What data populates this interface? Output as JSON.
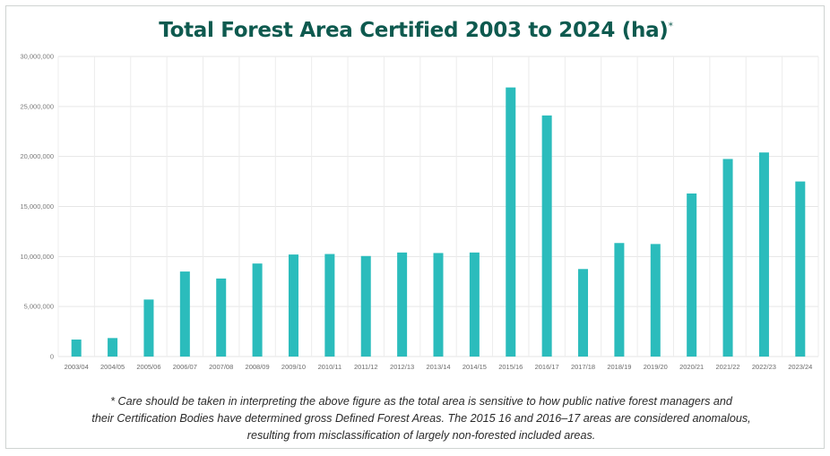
{
  "chart_data": {
    "type": "bar",
    "title": "Total Forest Area Certified 2003 to 2024 (ha)",
    "title_marker": "*",
    "categories": [
      "2003/04",
      "2004/05",
      "2005/06",
      "2006/07",
      "2007/08",
      "2008/09",
      "2009/10",
      "2010/11",
      "2011/12",
      "2012/13",
      "2013/14",
      "2014/15",
      "2015/16",
      "2016/17",
      "2017/18",
      "2018/19",
      "2019/20",
      "2020/21",
      "2021/22",
      "2022/23",
      "2023/24"
    ],
    "values": [
      1700000,
      1850000,
      5700000,
      8500000,
      7800000,
      9300000,
      10200000,
      10250000,
      10050000,
      10400000,
      10350000,
      10400000,
      26900000,
      24100000,
      8750000,
      11350000,
      11250000,
      16300000,
      19750000,
      20400000,
      17500000
    ],
    "yticks": [
      "0",
      "5,000,000",
      "10,000,000",
      "15,000,000",
      "20,000,000",
      "25,000,000",
      "30,000,000"
    ],
    "ylim": [
      0,
      30000000
    ],
    "xlabel": "",
    "ylabel": "",
    "grid": true,
    "bar_color": "#2bbcbc"
  },
  "footnote": {
    "line1": "* Care should be taken in interpreting the above figure as the total area is sensitive to how public native forest managers and",
    "line2": "their Certification Bodies have determined gross Defined Forest Areas. The 2015 16 and 2016–17 areas are considered anomalous,",
    "line3": "resulting from misclassification of largely non-forested included areas."
  }
}
